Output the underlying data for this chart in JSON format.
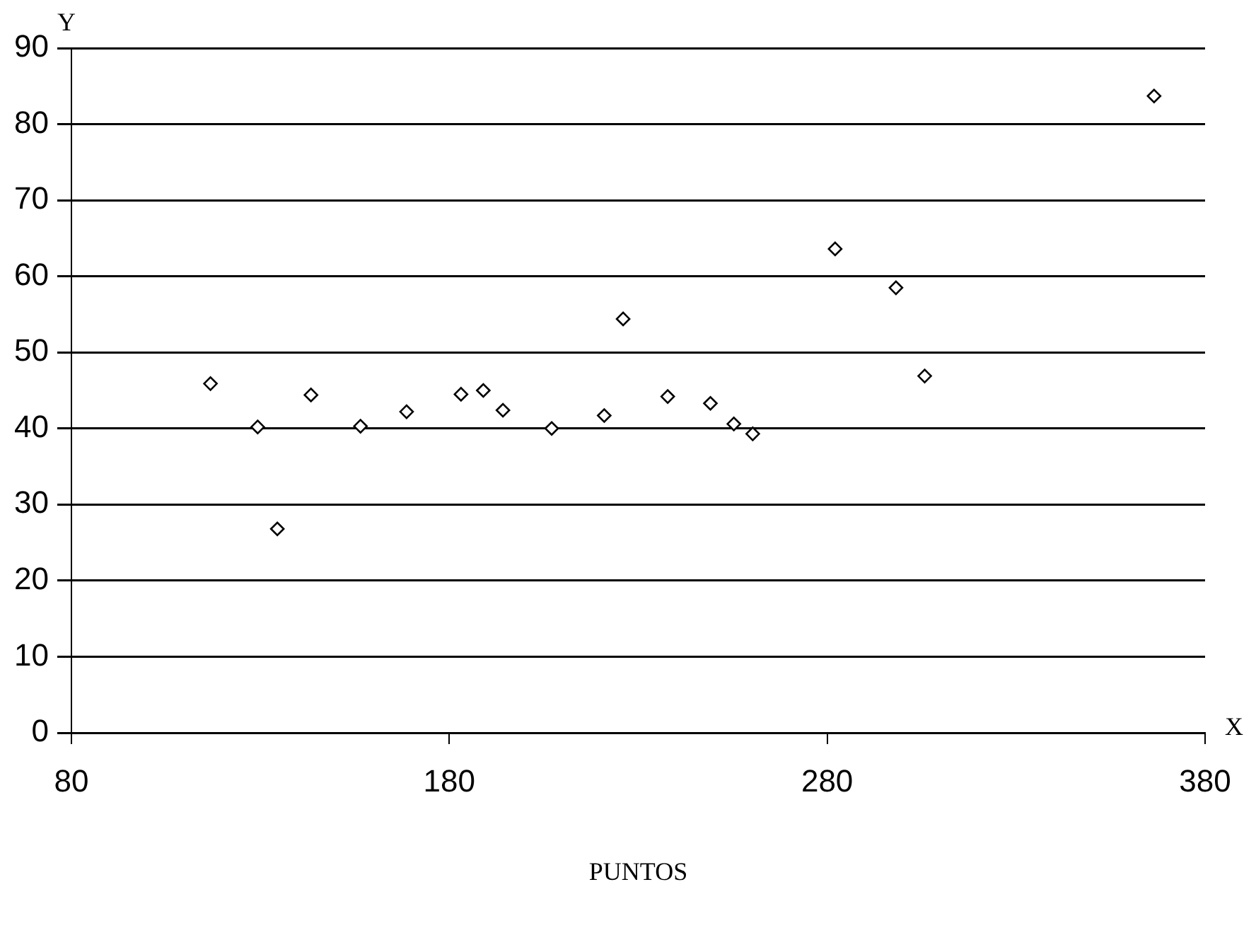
{
  "chart_data": {
    "type": "scatter",
    "xlabel": "PUNTOS",
    "ylabel": "Y",
    "annotations": [
      "X"
    ],
    "x": [
      116.8,
      129.3,
      134.5,
      143.4,
      156.5,
      168.7,
      183.1,
      189.0,
      194.2,
      207.1,
      221.0,
      226.0,
      237.8,
      249.1,
      255.3,
      260.3,
      282.1,
      298.2,
      305.8,
      366.5
    ],
    "series": [
      {
        "color": "#000000",
        "values": [
          45.9,
          40.2,
          26.8,
          44.4,
          40.3,
          42.2,
          44.5,
          45.0,
          42.4,
          40.0,
          41.7,
          54.4,
          44.2,
          43.3,
          40.6,
          39.3,
          63.6,
          58.5,
          46.9,
          83.7
        ]
      }
    ],
    "xlim": [
      80,
      380
    ],
    "xticks": [
      80,
      180,
      280,
      380
    ],
    "ylim": [
      0,
      90
    ],
    "yticks": [
      0,
      10,
      20,
      30,
      40,
      50,
      60,
      70,
      80,
      90
    ],
    "grid": "y",
    "marker": "diamond",
    "legend": false
  }
}
